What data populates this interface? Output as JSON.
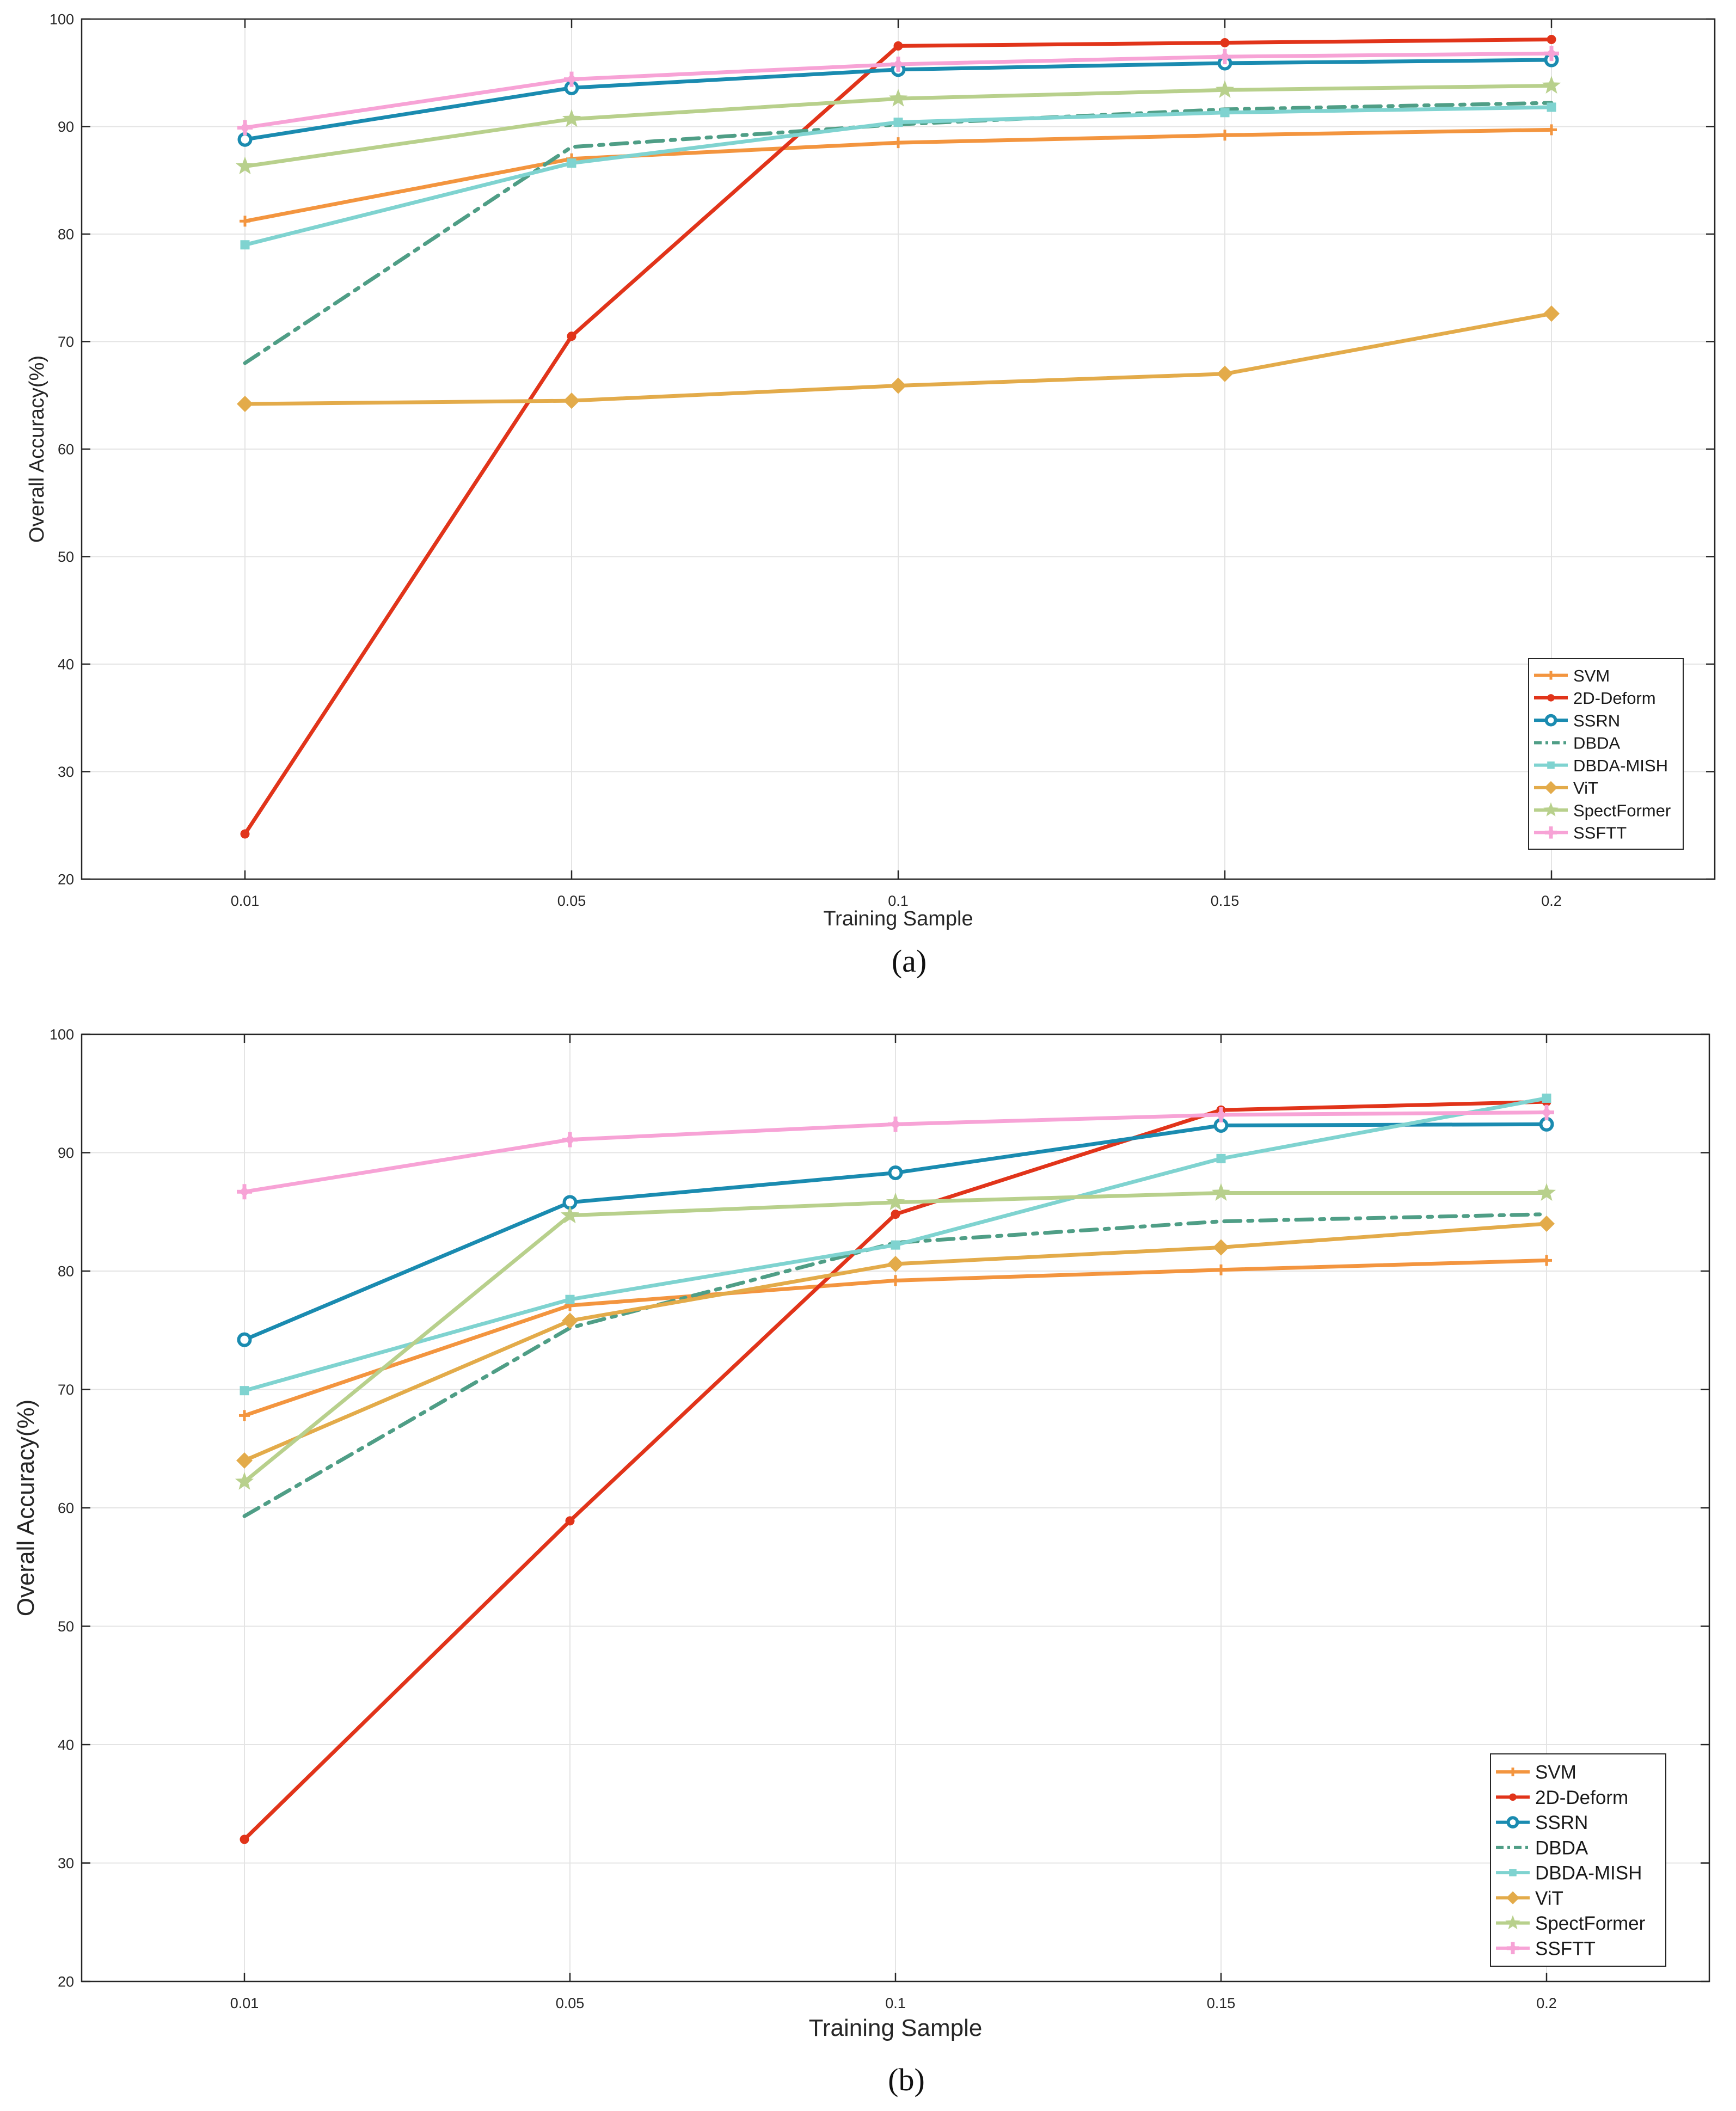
{
  "chart_data": [
    {
      "type": "line",
      "caption": "(a)",
      "xlabel": "Training Sample",
      "ylabel": "Overall Accuracy(%)",
      "categories": [
        "0.01",
        "0.05",
        "0.1",
        "0.15",
        "0.2"
      ],
      "ylim": [
        20,
        100
      ],
      "yticks": [
        "20",
        "30",
        "40",
        "50",
        "60",
        "70",
        "80",
        "90",
        "100"
      ],
      "grid": true,
      "legend_position": "bottom-right",
      "series": [
        {
          "name": "SVM",
          "values": [
            81.2,
            87.0,
            88.5,
            89.2,
            89.7
          ],
          "color": "#f3953f",
          "marker": "plus",
          "dash": "solid"
        },
        {
          "name": "2D-Deform",
          "values": [
            24.2,
            70.5,
            97.5,
            97.8,
            98.1
          ],
          "color": "#e1341a",
          "marker": "dot",
          "dash": "solid"
        },
        {
          "name": "SSRN",
          "values": [
            88.8,
            93.6,
            95.3,
            95.9,
            96.2
          ],
          "color": "#1a8bb0",
          "marker": "circle",
          "dash": "solid"
        },
        {
          "name": "DBDA",
          "values": [
            68.0,
            88.1,
            90.2,
            91.6,
            92.2
          ],
          "color": "#4f9e86",
          "marker": "none",
          "dash": "dashed"
        },
        {
          "name": "DBDA-MISH",
          "values": [
            79.0,
            86.6,
            90.4,
            91.3,
            91.8
          ],
          "color": "#7fd3d0",
          "marker": "square",
          "dash": "solid"
        },
        {
          "name": "ViT",
          "values": [
            64.2,
            64.5,
            65.9,
            67.0,
            72.6
          ],
          "color": "#e3ab4a",
          "marker": "diamond",
          "dash": "solid"
        },
        {
          "name": "SpectFormer",
          "values": [
            86.3,
            90.7,
            92.6,
            93.4,
            93.8
          ],
          "color": "#b8d08c",
          "marker": "star",
          "dash": "solid"
        },
        {
          "name": "SSFTT",
          "values": [
            89.9,
            94.4,
            95.8,
            96.5,
            96.8
          ],
          "color": "#f7a3d6",
          "marker": "pinwheel",
          "dash": "solid"
        }
      ]
    },
    {
      "type": "line",
      "caption": "(b)",
      "xlabel": "Training Sample",
      "ylabel": "Overall Accuracy(%)",
      "categories": [
        "0.01",
        "0.05",
        "0.1",
        "0.15",
        "0.2"
      ],
      "ylim": [
        20,
        100
      ],
      "yticks": [
        "20",
        "30",
        "40",
        "50",
        "60",
        "70",
        "80",
        "90",
        "100"
      ],
      "grid": true,
      "legend_position": "bottom-right",
      "series": [
        {
          "name": "SVM",
          "values": [
            67.8,
            77.1,
            79.2,
            80.1,
            80.9
          ],
          "color": "#f3953f",
          "marker": "plus",
          "dash": "solid"
        },
        {
          "name": "2D-Deform",
          "values": [
            32.0,
            58.9,
            84.8,
            93.6,
            94.3
          ],
          "color": "#e1341a",
          "marker": "dot",
          "dash": "solid"
        },
        {
          "name": "SSRN",
          "values": [
            74.2,
            85.8,
            88.3,
            92.3,
            92.4
          ],
          "color": "#1a8bb0",
          "marker": "circle",
          "dash": "solid"
        },
        {
          "name": "DBDA",
          "values": [
            59.3,
            75.2,
            82.4,
            84.2,
            84.8
          ],
          "color": "#4f9e86",
          "marker": "none",
          "dash": "dashed"
        },
        {
          "name": "DBDA-MISH",
          "values": [
            69.9,
            77.6,
            82.2,
            89.5,
            94.6
          ],
          "color": "#7fd3d0",
          "marker": "square",
          "dash": "solid"
        },
        {
          "name": "ViT",
          "values": [
            64.0,
            75.8,
            80.6,
            82.0,
            84.0
          ],
          "color": "#e3ab4a",
          "marker": "diamond",
          "dash": "solid"
        },
        {
          "name": "SpectFormer",
          "values": [
            62.2,
            84.7,
            85.8,
            86.6,
            86.6
          ],
          "color": "#b8d08c",
          "marker": "star",
          "dash": "solid"
        },
        {
          "name": "SSFTT",
          "values": [
            86.7,
            91.1,
            92.4,
            93.2,
            93.4
          ],
          "color": "#f7a3d6",
          "marker": "pinwheel",
          "dash": "solid"
        }
      ]
    }
  ]
}
